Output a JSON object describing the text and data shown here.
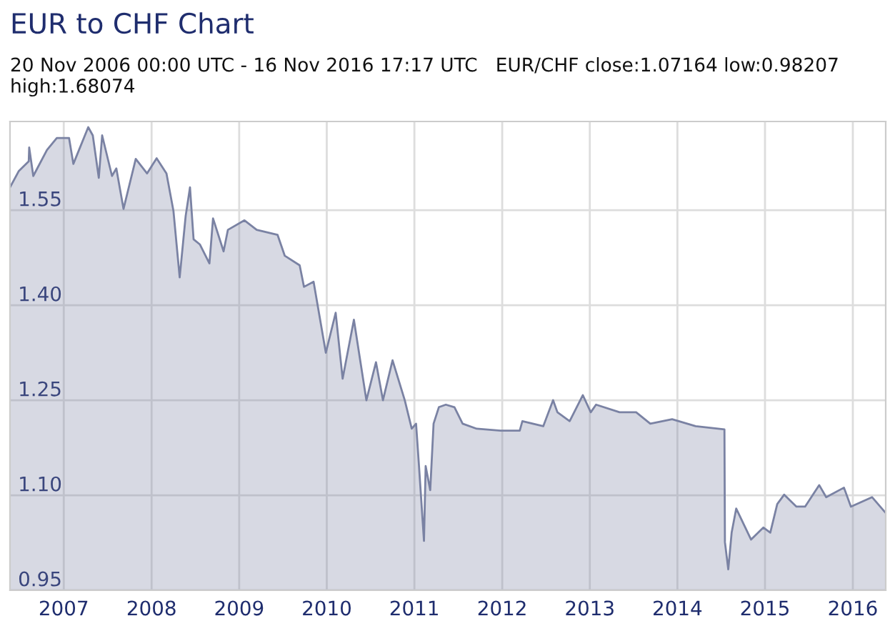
{
  "chart_data": {
    "type": "area",
    "title": "EUR to CHF Chart",
    "subtitle": "20 Nov 2006 00:00 UTC - 16 Nov 2016 17:17 UTC   EUR/CHF close:1.07164 low:0.98207 high:1.68074",
    "x": [
      "2006-11-20",
      "2006-12-27",
      "2007-02-06",
      "2007-02-08",
      "2007-02-25",
      "2007-04-23",
      "2007-06-03",
      "2007-07-24",
      "2007-08-11",
      "2007-10-12",
      "2007-10-31",
      "2007-11-25",
      "2007-12-09",
      "2008-01-19",
      "2008-02-06",
      "2008-03-07",
      "2008-04-27",
      "2008-06-13",
      "2008-07-23",
      "2008-09-02",
      "2008-10-01",
      "2008-10-27",
      "2008-11-21",
      "2008-12-09",
      "2008-12-24",
      "2009-01-19",
      "2009-02-28",
      "2009-03-15",
      "2009-04-28",
      "2009-05-16",
      "2009-07-24",
      "2009-09-13",
      "2009-12-09",
      "2010-01-08",
      "2010-03-11",
      "2010-03-29",
      "2010-05-08",
      "2010-06-28",
      "2010-08-08",
      "2010-09-06",
      "2010-10-23",
      "2010-12-14",
      "2011-01-23",
      "2011-02-21",
      "2011-04-02",
      "2011-05-23",
      "2011-06-21",
      "2011-07-09",
      "2011-07-20",
      "2011-08-11",
      "2011-08-18",
      "2011-09-06",
      "2011-09-20",
      "2011-10-12",
      "2011-11-10",
      "2011-12-16",
      "2012-01-19",
      "2012-03-18",
      "2012-06-25",
      "2012-09-13",
      "2012-09-24",
      "2012-12-20",
      "2013-01-30",
      "2013-02-17",
      "2013-04-09",
      "2013-06-03",
      "2013-07-06",
      "2013-07-28",
      "2013-11-03",
      "2014-01-11",
      "2014-03-11",
      "2014-06-10",
      "2014-09-16",
      "2015-01-14",
      "2015-01-16",
      "2015-01-30",
      "2015-02-13",
      "2015-03-04",
      "2015-05-05",
      "2015-06-25",
      "2015-07-24",
      "2015-08-22",
      "2015-09-20",
      "2015-11-10",
      "2015-12-16",
      "2016-02-13",
      "2016-03-13",
      "2016-05-26",
      "2016-06-24",
      "2016-09-20",
      "2016-11-16"
    ],
    "series": [
      {
        "color": "#7a82a3",
        "values": [
          1.586,
          1.612,
          1.627,
          1.649,
          1.604,
          1.645,
          1.664,
          1.664,
          1.623,
          1.681,
          1.668,
          1.601,
          1.668,
          1.604,
          1.616,
          1.552,
          1.631,
          1.608,
          1.632,
          1.608,
          1.549,
          1.444,
          1.541,
          1.586,
          1.504,
          1.496,
          1.466,
          1.537,
          1.485,
          1.519,
          1.534,
          1.519,
          1.511,
          1.478,
          1.463,
          1.429,
          1.437,
          1.325,
          1.388,
          1.284,
          1.377,
          1.25,
          1.31,
          1.25,
          1.313,
          1.25,
          1.205,
          1.213,
          1.153,
          1.028,
          1.146,
          1.108,
          1.213,
          1.239,
          1.243,
          1.239,
          1.213,
          1.205,
          1.202,
          1.202,
          1.217,
          1.209,
          1.25,
          1.231,
          1.217,
          1.258,
          1.231,
          1.243,
          1.231,
          1.231,
          1.213,
          1.22,
          1.209,
          1.204,
          1.026,
          0.983,
          1.041,
          1.079,
          1.03,
          1.049,
          1.041,
          1.086,
          1.101,
          1.082,
          1.082,
          1.116,
          1.097,
          1.112,
          1.082,
          1.097,
          1.072
        ]
      }
    ],
    "xlim": [
      "2006-11-20",
      "2016-11-16"
    ],
    "xticks": [
      {
        "value": "2007-07-02",
        "label": "2007"
      },
      {
        "value": "2008-07-02",
        "label": "2008"
      },
      {
        "value": "2009-07-02",
        "label": "2009"
      },
      {
        "value": "2010-07-02",
        "label": "2010"
      },
      {
        "value": "2011-07-02",
        "label": "2011"
      },
      {
        "value": "2012-07-02",
        "label": "2012"
      },
      {
        "value": "2013-07-02",
        "label": "2013"
      },
      {
        "value": "2014-07-02",
        "label": "2014"
      },
      {
        "value": "2015-07-02",
        "label": "2015"
      },
      {
        "value": "2016-07-02",
        "label": "2016"
      }
    ],
    "ylim": [
      0.95,
      1.69
    ],
    "yticks": [
      0.95,
      {
        "value": 1.1,
        "label": "1.10"
      },
      1.25,
      {
        "value": 1.4,
        "label": "1.40"
      },
      1.55
    ],
    "grid": true
  }
}
